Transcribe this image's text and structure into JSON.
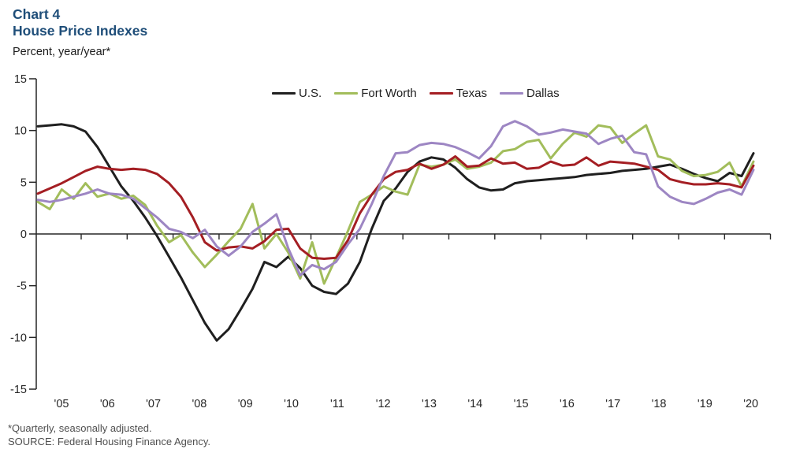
{
  "header": {
    "title_line1": "Chart 4",
    "title_line2": "House Price Indexes",
    "axis_unit_label": "Percent, year/year*",
    "title_color": "#1f4e79"
  },
  "footnotes": {
    "line1": "*Quarterly, seasonally adjusted.",
    "line2": "SOURCE: Federal Housing Finance Agency."
  },
  "colors": {
    "axis": "#262626",
    "tick_label": "#262626",
    "us": "#1f1f1f",
    "fort_worth": "#a2bd5b",
    "texas": "#a41e23",
    "dallas": "#9d86c3"
  },
  "chart_data": {
    "type": "line",
    "title": "House Price Indexes",
    "ylabel": "Percent, year/year*",
    "ylim": [
      -15,
      15
    ],
    "yticks": [
      15,
      10,
      5,
      0,
      -5,
      -10,
      -15
    ],
    "ytick_labels": [
      "15",
      "10",
      "5",
      "0",
      "-5",
      "-10",
      "-15"
    ],
    "x_start": "2005Q1",
    "x_end": "2020Q1",
    "frequency": "quarterly",
    "x_year_labels": [
      "'05",
      "'06",
      "'07",
      "'08",
      "'09",
      "'10",
      "'11",
      "'12",
      "'13",
      "'14",
      "'15",
      "'16",
      "'17",
      "'18",
      "'19",
      "'20"
    ],
    "grid": false,
    "legend_position": "top-center",
    "series": [
      {
        "name": "U.S.",
        "color": "#1f1f1f",
        "values": [
          10.4,
          10.5,
          10.6,
          10.4,
          9.9,
          8.4,
          6.5,
          4.6,
          3.2,
          1.6,
          -0.2,
          -2.2,
          -4.2,
          -6.4,
          -8.6,
          -10.3,
          -9.2,
          -7.3,
          -5.3,
          -2.7,
          -3.2,
          -2.2,
          -3.3,
          -5.0,
          -5.6,
          -5.8,
          -4.8,
          -2.7,
          0.5,
          3.2,
          4.4,
          6.0,
          7.0,
          7.4,
          7.2,
          6.4,
          5.3,
          4.5,
          4.2,
          4.3,
          4.9,
          5.1,
          5.2,
          5.3,
          5.4,
          5.5,
          5.7,
          5.8,
          5.9,
          6.1,
          6.2,
          6.3,
          6.5,
          6.7,
          6.3,
          5.8,
          5.4,
          5.1,
          5.9,
          5.6,
          7.8
        ]
      },
      {
        "name": "Fort Worth",
        "color": "#a2bd5b",
        "values": [
          3.1,
          2.4,
          4.3,
          3.4,
          4.9,
          3.6,
          3.9,
          3.4,
          3.7,
          2.8,
          0.8,
          -0.8,
          -0.1,
          -1.8,
          -3.2,
          -2.0,
          -0.7,
          0.5,
          2.9,
          -1.4,
          0.0,
          -1.8,
          -4.3,
          -0.8,
          -4.8,
          -2.3,
          0.3,
          3.1,
          3.8,
          4.6,
          4.1,
          3.8,
          6.7,
          6.5,
          6.7,
          7.2,
          6.3,
          6.5,
          6.9,
          8.0,
          8.2,
          8.9,
          9.1,
          7.3,
          8.7,
          9.8,
          9.4,
          10.5,
          10.3,
          8.8,
          9.7,
          10.5,
          7.5,
          7.2,
          6.1,
          5.6,
          5.7,
          6.0,
          6.9,
          4.6,
          7.0
        ]
      },
      {
        "name": "Texas",
        "color": "#a41e23",
        "values": [
          3.9,
          4.4,
          4.9,
          5.5,
          6.1,
          6.5,
          6.3,
          6.2,
          6.3,
          6.2,
          5.8,
          4.9,
          3.6,
          1.6,
          -0.8,
          -1.6,
          -1.3,
          -1.2,
          -1.4,
          -0.7,
          0.4,
          0.5,
          -1.4,
          -2.3,
          -2.4,
          -2.3,
          -0.6,
          2.0,
          3.8,
          5.3,
          6.0,
          6.2,
          6.8,
          6.3,
          6.7,
          7.5,
          6.5,
          6.6,
          7.3,
          6.8,
          6.9,
          6.3,
          6.4,
          7.0,
          6.6,
          6.7,
          7.4,
          6.6,
          7.0,
          6.9,
          6.8,
          6.5,
          6.2,
          5.3,
          5.0,
          4.8,
          4.8,
          4.9,
          4.8,
          4.5,
          6.6
        ]
      },
      {
        "name": "Dallas",
        "color": "#9d86c3",
        "values": [
          3.3,
          3.1,
          3.3,
          3.6,
          3.9,
          4.3,
          3.9,
          3.8,
          3.4,
          2.5,
          1.6,
          0.5,
          0.2,
          -0.4,
          0.4,
          -1.2,
          -2.1,
          -1.2,
          0.2,
          1.0,
          1.9,
          -1.4,
          -4.0,
          -3.0,
          -3.4,
          -2.7,
          -1.0,
          0.5,
          2.9,
          5.6,
          7.8,
          7.9,
          8.6,
          8.8,
          8.7,
          8.4,
          7.9,
          7.3,
          8.5,
          10.4,
          10.9,
          10.4,
          9.6,
          9.8,
          10.1,
          9.9,
          9.7,
          8.7,
          9.2,
          9.5,
          7.9,
          7.7,
          4.6,
          3.6,
          3.1,
          2.9,
          3.4,
          4.0,
          4.3,
          3.8,
          6.2
        ]
      }
    ]
  }
}
